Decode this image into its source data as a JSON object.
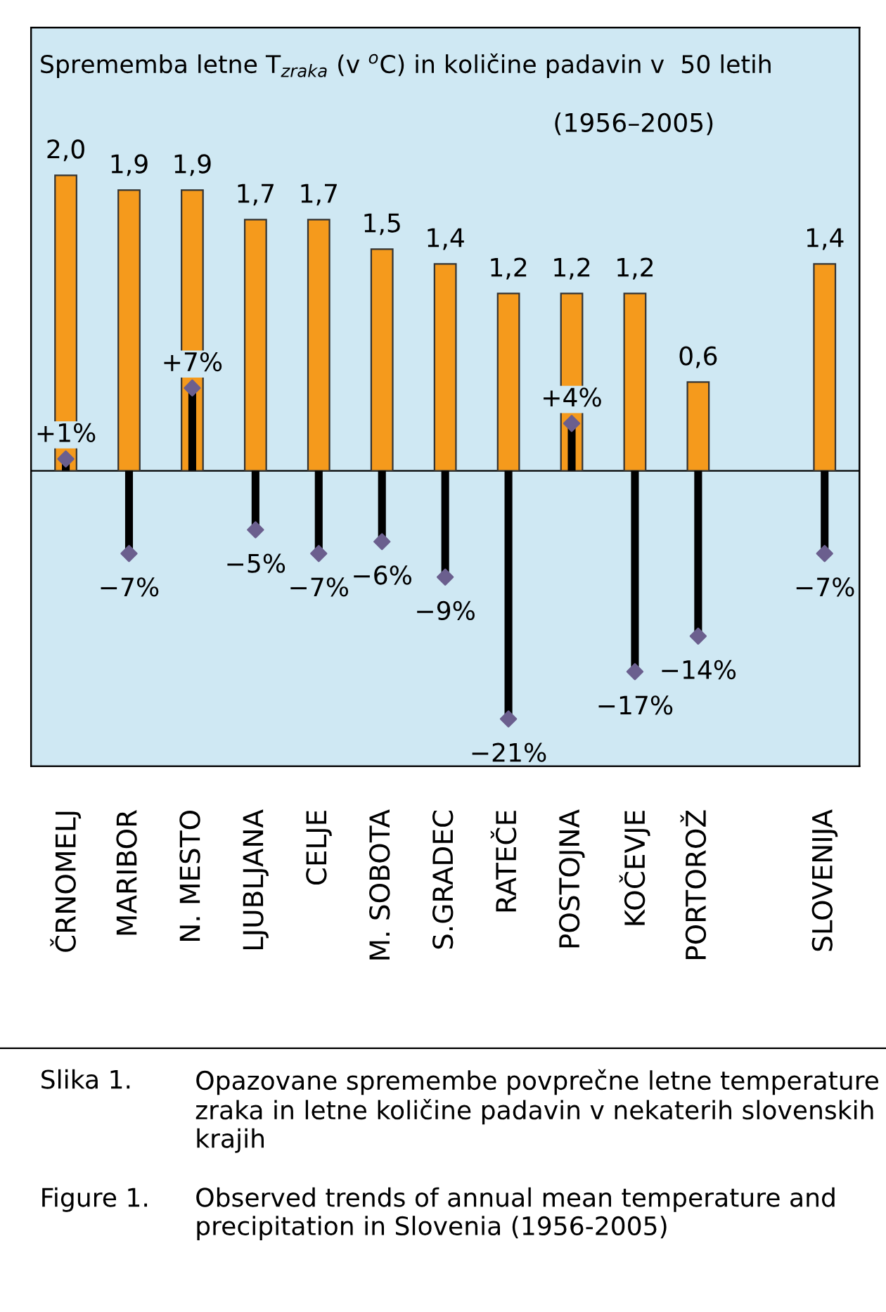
{
  "chart_data": {
    "type": "bar",
    "title": "Sprememba letne T$_{zraka}$ (v $^{o}$C) in količine padavin v  50 letih",
    "subtitle": "(1956–2005)",
    "categories": [
      "ČRNOMELJ",
      "MARIBOR",
      "N. MESTO",
      "LJUBLJANA",
      "CELJE",
      "M. SOBOTA",
      "S.GRADEC",
      "RATEČE",
      "POSTOJNA",
      "KOČEVJE",
      "PORTOROŽ",
      null,
      "SLOVENIJA"
    ],
    "series": [
      {
        "type": "bar",
        "color": "#f59a1c",
        "values": [
          2.0,
          1.9,
          1.9,
          1.7,
          1.7,
          1.5,
          1.4,
          1.2,
          1.2,
          1.2,
          0.6,
          null,
          1.4
        ],
        "value_labels": [
          "2,0",
          "1,9",
          "1,9",
          "1,7",
          "1,7",
          "1,5",
          "1,4",
          "1,2",
          "1,2",
          "1,2",
          "0,6",
          null,
          "1,4"
        ]
      },
      {
        "type": "lollipop",
        "axis": "y2",
        "color": "#6b5f8e",
        "values": [
          1,
          -7,
          7,
          -5,
          -7,
          -6,
          -9,
          -21,
          4,
          -17,
          -14,
          null,
          -7
        ],
        "value_labels": [
          "+1%",
          "−7%",
          "+7%",
          "−5%",
          "−7%",
          "−6%",
          "−9%",
          "−21%",
          "+4%",
          "−17%",
          "−14%",
          null,
          "−7%"
        ]
      }
    ],
    "marker": "diamond",
    "ylim": [
      -2,
      3
    ],
    "y2lim": [
      -25,
      37.5
    ],
    "annotations": [
      "Slika 1.",
      "Opazovane spremembe povprečne letne temperature zraka in letne količine padavin v nekaterih slovenskih krajih",
      "Figure 1.",
      "Observed trends of annual mean temperature and precipitation in Slovenia (1956-2005)"
    ]
  }
}
